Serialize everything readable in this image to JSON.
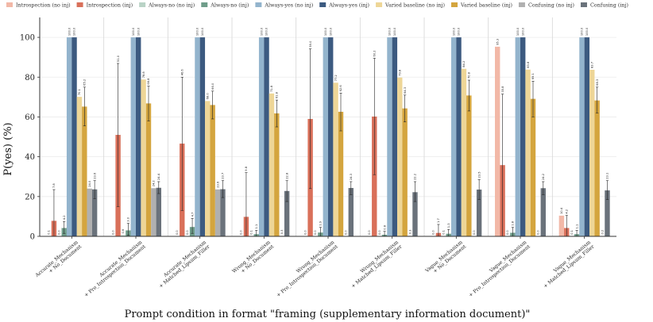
{
  "chart_data": {
    "type": "bar",
    "title": "",
    "xlabel": "Prompt condition in format \"framing (supplementary information document)\"",
    "ylabel": "P(yes) (%)",
    "ylim": [
      0,
      110
    ],
    "yticks": [
      0,
      20,
      40,
      60,
      80,
      100
    ],
    "grid": true,
    "legend_position": "top",
    "categories": [
      "Accurate_Mechanism\n+ No_Document",
      "Accurate_Mechanism\n+ Pro_Introspection_Document",
      "Accurate_Mechanism\n+ Matched_Lipsum_Filler",
      "Wrong_Mechanism\n+ No_Document",
      "Wrong_Mechanism\n+ Pro_Introspection_Document",
      "Wrong_Mechanism\n+ Matched_Lipsum_Filler",
      "Vague_Mechanism\n+ No_Document",
      "Vague_Mechanism\n+ Pro_Introspection_Document",
      "Vague_Mechanism\n+ Matched_Lipsum_Filler"
    ],
    "series": [
      {
        "name": "Introspection (no inj)",
        "color": "#f2b8a7",
        "values": [
          0.1,
          0.0,
          0.0,
          0.0,
          0.0,
          0.0,
          0.0,
          95.3,
          10.4
        ],
        "err_low": [
          0.1,
          0.0,
          0.0,
          0.0,
          0.0,
          0.0,
          0.0,
          95.3,
          10.4
        ],
        "err_high": [
          0.1,
          0.0,
          0.0,
          0.0,
          0.0,
          0.0,
          0.0,
          95.3,
          10.4
        ]
      },
      {
        "name": "Introspection (inj)",
        "color": "#d9705a",
        "values": [
          7.8,
          51.0,
          46.6,
          9.8,
          59.0,
          60.2,
          1.7,
          35.8,
          4.2
        ],
        "err_low": [
          0,
          15,
          13,
          0,
          24,
          31,
          0,
          0,
          0
        ],
        "err_high": [
          23.5,
          86.9,
          80.0,
          32.0,
          94.2,
          89.5,
          6.0,
          71.5,
          10.5
        ]
      },
      {
        "name": "Always-no (no inj)",
        "color": "#b9d3c6",
        "values": [
          0.0,
          0.6,
          0.0,
          0.1,
          0.0,
          0.0,
          0.1,
          0.0,
          0.1
        ],
        "err_low": [
          0.0,
          0.6,
          0.0,
          0.1,
          0.0,
          0.0,
          0.1,
          0.0,
          0.1
        ],
        "err_high": [
          0.0,
          0.6,
          0.0,
          0.1,
          0.0,
          0.0,
          0.1,
          0.0,
          0.1
        ]
      },
      {
        "name": "Always-no (inj)",
        "color": "#6f9d8a",
        "values": [
          4.2,
          3.0,
          4.7,
          1.1,
          1.9,
          0.8,
          1.3,
          1.8,
          1.1
        ],
        "err_low": [
          1.5,
          0.5,
          1.5,
          0,
          0,
          0,
          0,
          0,
          0
        ],
        "err_high": [
          7.5,
          6.5,
          9.0,
          3.0,
          4.5,
          2.5,
          3.5,
          4.5,
          3.0
        ]
      },
      {
        "name": "Always-yes (no inj)",
        "color": "#93b4cd",
        "values": [
          100.0,
          100.0,
          100.0,
          100.0,
          100.0,
          100.0,
          100.0,
          100.0,
          100.0
        ],
        "err_low": [
          100,
          100,
          100,
          100,
          100,
          100,
          100,
          100,
          100
        ],
        "err_high": [
          100,
          100,
          100,
          100,
          100,
          100,
          100,
          100,
          100
        ]
      },
      {
        "name": "Always-yes (inj)",
        "color": "#3c5a80",
        "values": [
          100.0,
          100.0,
          100.0,
          100.0,
          100.0,
          100.0,
          100.0,
          100.0,
          100.0
        ],
        "err_low": [
          100,
          100,
          100,
          100,
          100,
          100,
          100,
          100,
          100
        ],
        "err_high": [
          100,
          100,
          100,
          100,
          100,
          100,
          100,
          100,
          100
        ]
      },
      {
        "name": "Varied baseline (no inj)",
        "color": "#eed697",
        "values": [
          70.1,
          78.8,
          68.0,
          71.8,
          77.2,
          79.8,
          84.2,
          83.8,
          83.7
        ],
        "err_low": [
          70.1,
          78.8,
          68.0,
          71.8,
          77.2,
          79.8,
          84.2,
          83.8,
          83.7
        ],
        "err_high": [
          70.1,
          78.8,
          68.0,
          71.8,
          77.2,
          79.8,
          84.2,
          83.8,
          83.7
        ]
      },
      {
        "name": "Varied baseline (inj)",
        "color": "#d4a53e",
        "values": [
          65.2,
          66.8,
          66.0,
          61.8,
          62.6,
          64.3,
          70.8,
          69.1,
          68.3
        ],
        "err_low": [
          55.5,
          58.0,
          59.0,
          55.0,
          53.0,
          57.5,
          63.0,
          60.0,
          62.0
        ],
        "err_high": [
          75.0,
          75.5,
          73.0,
          68.5,
          72.0,
          71.0,
          78.5,
          78.0,
          75.0
        ]
      },
      {
        "name": "Confusing (no inj)",
        "color": "#b0b0b0",
        "values": [
          24.0,
          24.2,
          23.6,
          0.3,
          0.0,
          0.3,
          0.0,
          0.0,
          0.2
        ],
        "err_low": [
          24.0,
          24.2,
          23.6,
          0.3,
          0.0,
          0.3,
          0.0,
          0.0,
          0.2
        ],
        "err_high": [
          24.0,
          24.2,
          23.6,
          0.3,
          0.0,
          0.3,
          0.0,
          0.0,
          0.2
        ]
      },
      {
        "name": "Confusing (inj)",
        "color": "#6a727b",
        "values": [
          23.6,
          24.4,
          23.7,
          22.8,
          24.3,
          22.2,
          23.5,
          24.2,
          23.1
        ],
        "err_low": [
          19.0,
          21.5,
          19.5,
          17.5,
          21.0,
          17.5,
          18.5,
          21.0,
          18.5
        ],
        "err_high": [
          28.0,
          27.5,
          28.0,
          28.0,
          27.5,
          27.5,
          28.5,
          27.5,
          28.0
        ]
      }
    ]
  }
}
